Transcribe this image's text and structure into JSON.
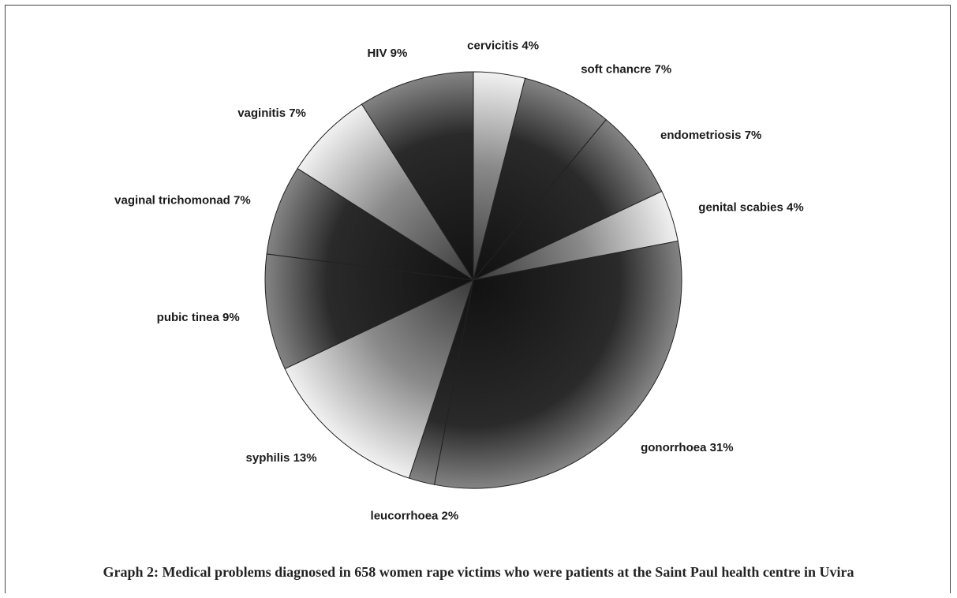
{
  "chart_data": {
    "type": "pie",
    "categories": [
      "cervicitis",
      "soft chancre",
      "endometriosis",
      "genital scabies",
      "gonorrhoea",
      "leucorrhoea",
      "syphilis",
      "pubic tinea",
      "vaginal trichomonad",
      "vaginitis",
      "HIV"
    ],
    "values": [
      4,
      7,
      7,
      4,
      31,
      2,
      13,
      9,
      7,
      7,
      9
    ],
    "labels": [
      "cervicitis 4%",
      "soft chancre 7%",
      "endometriosis 7%",
      "genital scabies 4%",
      "gonorrhoea 31%",
      "leucorrhoea 2%",
      "syphilis 13%",
      "pubic tinea 9%",
      "vaginal trichomonad 7%",
      "vaginitis 7%",
      "HIV 9%"
    ],
    "shades": [
      "light",
      "dark",
      "dark",
      "light",
      "dark",
      "dark",
      "light",
      "dark",
      "dark",
      "light",
      "dark"
    ],
    "start": "top",
    "direction": "clockwise"
  },
  "caption": "Graph 2: Medical problems diagnosed in 658 women rape victims who were patients at the Saint Paul health centre in Uvira"
}
